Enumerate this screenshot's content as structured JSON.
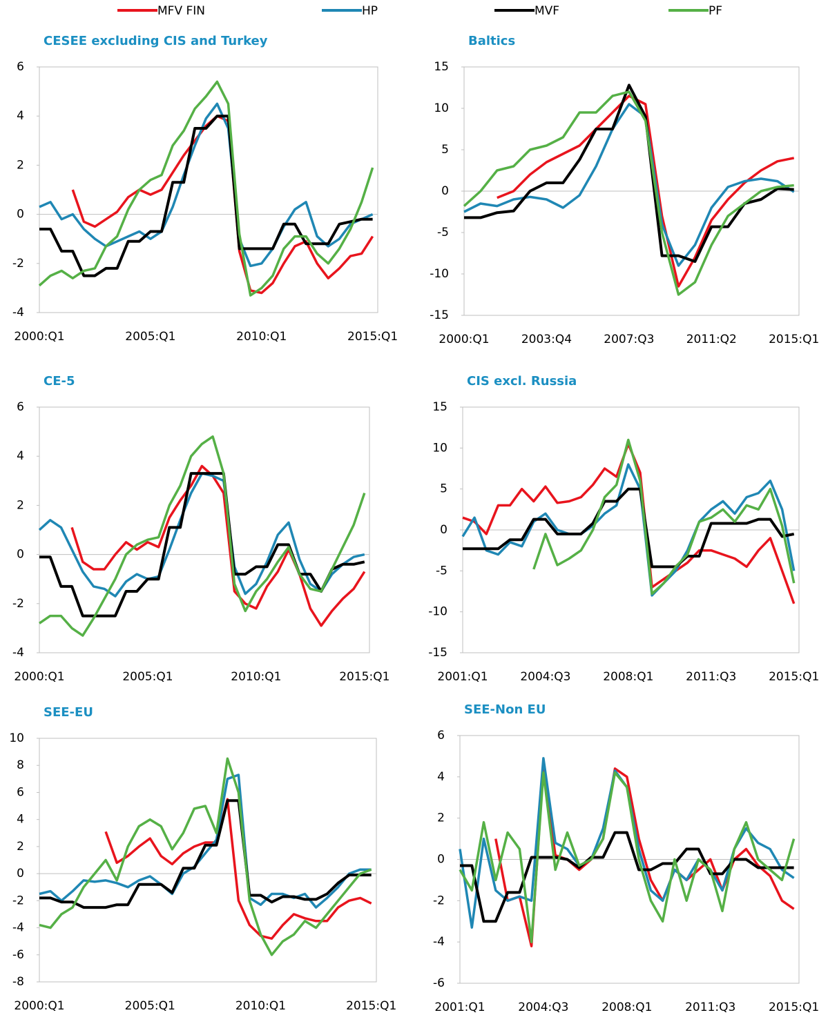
{
  "chart_data": [
    {
      "type": "line",
      "title": "CESEE excluding CIS and Turkey",
      "categories": [
        "2000:Q1",
        null,
        null,
        null,
        null,
        null,
        null,
        null,
        null,
        null,
        "2005:Q1",
        null,
        null,
        null,
        null,
        null,
        null,
        null,
        null,
        null,
        "2010:Q1",
        null,
        null,
        null,
        null,
        null,
        null,
        null,
        null,
        null,
        "2015:Q1"
      ],
      "ylim": [
        -4,
        6
      ],
      "yticks": [
        -4,
        -2,
        0,
        2,
        4,
        6
      ],
      "series": [
        {
          "name": "MFV FIN",
          "color": "#e8141d",
          "values": [
            null,
            null,
            null,
            1.0,
            -0.3,
            -0.5,
            -0.2,
            0.1,
            0.7,
            1.0,
            0.8,
            1.0,
            1.7,
            2.4,
            3.0,
            3.6,
            4.0,
            3.8,
            -1.5,
            -3.1,
            -3.2,
            -2.8,
            -2.0,
            -1.3,
            -1.1,
            -2.0,
            -2.6,
            -2.2,
            -1.7,
            -1.6,
            -0.9
          ]
        },
        {
          "name": "HP",
          "color": "#1f87b4",
          "values": [
            0.3,
            0.5,
            -0.2,
            0.0,
            -0.6,
            -1.0,
            -1.3,
            -1.1,
            -0.9,
            -0.7,
            -1.0,
            -0.7,
            0.3,
            1.6,
            2.8,
            3.9,
            4.5,
            3.5,
            -1.0,
            -2.1,
            -2.0,
            -1.4,
            -0.5,
            0.2,
            0.5,
            -0.9,
            -1.3,
            -1.0,
            -0.4,
            -0.2,
            0.0
          ]
        },
        {
          "name": "MVF",
          "color": "#000000",
          "values": [
            -0.6,
            -0.6,
            -1.5,
            -1.5,
            -2.5,
            -2.5,
            -2.2,
            -2.2,
            -1.1,
            -1.1,
            -0.7,
            -0.7,
            1.3,
            1.3,
            3.5,
            3.5,
            4.0,
            4.0,
            -1.4,
            -1.4,
            -1.4,
            -1.4,
            -0.4,
            -0.4,
            -1.2,
            -1.2,
            -1.2,
            -0.4,
            -0.3,
            -0.2,
            -0.2
          ]
        },
        {
          "name": "PF",
          "color": "#55b046",
          "values": [
            -2.9,
            -2.5,
            -2.3,
            -2.6,
            -2.3,
            -2.2,
            -1.3,
            -0.9,
            0.2,
            1.0,
            1.4,
            1.6,
            2.8,
            3.4,
            4.3,
            4.8,
            5.4,
            4.5,
            -0.8,
            -3.3,
            -3.0,
            -2.5,
            -1.4,
            -0.9,
            -0.9,
            -1.6,
            -2.0,
            -1.4,
            -0.6,
            0.5,
            1.9
          ]
        }
      ]
    },
    {
      "type": "line",
      "title": "Baltics",
      "categories": [
        "2000:Q1",
        null,
        null,
        null,
        null,
        "2003:Q4",
        null,
        null,
        null,
        null,
        "2007:Q3",
        null,
        null,
        null,
        null,
        "2011:Q2",
        null,
        null,
        null,
        null,
        "2015:Q1"
      ],
      "ylim": [
        -15,
        15
      ],
      "yticks": [
        -15,
        -10,
        -5,
        0,
        5,
        10,
        15
      ],
      "series": [
        {
          "name": "MFV FIN",
          "color": "#e8141d",
          "values": [
            null,
            null,
            -0.8,
            0.0,
            2.0,
            3.5,
            4.5,
            5.5,
            7.5,
            9.5,
            11.5,
            10.5,
            -3.0,
            -11.5,
            -8.0,
            -3.5,
            -1.0,
            1.0,
            2.5,
            3.6,
            4.0
          ]
        },
        {
          "name": "HP",
          "color": "#1f87b4",
          "values": [
            -2.5,
            -1.5,
            -1.8,
            -1.0,
            -0.7,
            -1.0,
            -2.0,
            -0.5,
            3.0,
            7.5,
            10.5,
            9.0,
            -4.0,
            -9.0,
            -6.5,
            -2.0,
            0.5,
            1.2,
            1.5,
            1.2,
            -0.1
          ]
        },
        {
          "name": "MVF",
          "color": "#000000",
          "values": [
            -3.2,
            -3.2,
            -2.6,
            -2.4,
            0.0,
            1.0,
            1.0,
            3.8,
            7.5,
            7.5,
            12.8,
            9.0,
            -7.8,
            -7.8,
            -8.5,
            -4.3,
            -4.3,
            -1.5,
            -1.0,
            0.3,
            0.2
          ]
        },
        {
          "name": "PF",
          "color": "#55b046",
          "values": [
            -1.8,
            0.0,
            2.5,
            3.0,
            5.0,
            5.5,
            6.5,
            9.5,
            9.5,
            11.5,
            12.0,
            8.5,
            -5.0,
            -12.5,
            -11.0,
            -6.5,
            -3.0,
            -1.5,
            0.0,
            0.5,
            0.7
          ]
        }
      ]
    },
    {
      "type": "line",
      "title": "CE-5",
      "categories": [
        "2000:Q1",
        null,
        null,
        null,
        null,
        null,
        null,
        null,
        null,
        null,
        "2005:Q1",
        null,
        null,
        null,
        null,
        null,
        null,
        null,
        null,
        null,
        "2010:Q1",
        null,
        null,
        null,
        null,
        null,
        null,
        null,
        null,
        null,
        "2015:Q1"
      ],
      "ylim": [
        -4,
        6
      ],
      "yticks": [
        -4,
        -2,
        0,
        2,
        4,
        6
      ],
      "series": [
        {
          "name": "MFV FIN",
          "color": "#e8141d",
          "values": [
            null,
            null,
            null,
            1.1,
            -0.3,
            -0.6,
            -0.6,
            0.0,
            0.5,
            0.2,
            0.5,
            0.3,
            1.5,
            2.2,
            2.8,
            3.6,
            3.2,
            2.5,
            -1.5,
            -2.0,
            -2.2,
            -1.3,
            -0.7,
            0.2,
            -0.8,
            -2.2,
            -2.9,
            -2.3,
            -1.8,
            -1.4,
            -0.7
          ]
        },
        {
          "name": "HP",
          "color": "#1f87b4",
          "values": [
            1.0,
            1.4,
            1.1,
            0.2,
            -0.7,
            -1.3,
            -1.4,
            -1.7,
            -1.1,
            -0.8,
            -1.0,
            -0.9,
            0.2,
            1.4,
            2.5,
            3.3,
            3.2,
            3.0,
            -0.5,
            -1.6,
            -1.2,
            -0.3,
            0.8,
            1.3,
            -0.2,
            -1.2,
            -1.5,
            -0.8,
            -0.4,
            -0.1,
            0.0
          ]
        },
        {
          "name": "MVF",
          "color": "#000000",
          "values": [
            -0.1,
            -0.1,
            -1.3,
            -1.3,
            -2.5,
            -2.5,
            -2.5,
            -2.5,
            -1.5,
            -1.5,
            -1.0,
            -1.0,
            1.1,
            1.1,
            3.3,
            3.3,
            3.3,
            3.3,
            -0.8,
            -0.8,
            -0.5,
            -0.5,
            0.4,
            0.4,
            -0.8,
            -0.8,
            -1.5,
            -0.6,
            -0.4,
            -0.4,
            -0.3
          ]
        },
        {
          "name": "PF",
          "color": "#55b046",
          "values": [
            -2.8,
            -2.5,
            -2.5,
            -3.0,
            -3.3,
            -2.6,
            -1.8,
            -1.0,
            0.0,
            0.4,
            0.6,
            0.7,
            2.0,
            2.8,
            4.0,
            4.5,
            4.8,
            3.3,
            -1.2,
            -2.3,
            -1.5,
            -1.0,
            -0.3,
            0.3,
            -0.8,
            -1.4,
            -1.5,
            -0.6,
            0.3,
            1.2,
            2.5
          ]
        }
      ]
    },
    {
      "type": "line",
      "title": "CIS excl. Russia",
      "categories": [
        "2001:Q1",
        null,
        null,
        null,
        null,
        null,
        null,
        "2004:Q3",
        null,
        null,
        null,
        null,
        null,
        null,
        "2008:Q1",
        null,
        null,
        null,
        null,
        null,
        null,
        "2011:Q3",
        null,
        null,
        null,
        null,
        null,
        null,
        "2015:Q1"
      ],
      "ylim": [
        -15,
        15
      ],
      "yticks": [
        -15,
        -10,
        -5,
        0,
        5,
        10,
        15
      ],
      "series": [
        {
          "name": "MFV FIN",
          "color": "#e8141d",
          "values": [
            1.5,
            1.0,
            -0.5,
            3.0,
            3.0,
            5.0,
            3.5,
            5.3,
            3.3,
            3.5,
            4.0,
            5.5,
            7.5,
            6.5,
            10.5,
            7.0,
            -7.0,
            -6.0,
            -5.0,
            -4.0,
            -2.5,
            -2.5,
            -3.0,
            -3.5,
            -4.5,
            -2.5,
            -1.0,
            -5.0,
            -9.0
          ]
        },
        {
          "name": "HP",
          "color": "#1f87b4",
          "values": [
            -0.8,
            1.5,
            -2.5,
            -3.0,
            -1.5,
            -2.0,
            1.0,
            2.0,
            0.0,
            -0.5,
            -0.5,
            0.5,
            2.0,
            3.0,
            8.0,
            5.0,
            -8.0,
            -6.5,
            -5.0,
            -2.5,
            1.0,
            2.5,
            3.5,
            2.0,
            4.0,
            4.5,
            6.0,
            2.5,
            -5.0
          ]
        },
        {
          "name": "MVF",
          "color": "#000000",
          "values": [
            -2.3,
            -2.3,
            -2.3,
            -2.3,
            -1.2,
            -1.2,
            1.3,
            1.3,
            -0.5,
            -0.5,
            -0.5,
            0.8,
            3.5,
            3.5,
            5.0,
            5.0,
            -4.5,
            -4.5,
            -4.5,
            -3.2,
            -3.2,
            0.8,
            0.8,
            0.8,
            0.8,
            1.3,
            1.3,
            -0.8,
            -0.5
          ]
        },
        {
          "name": "PF",
          "color": "#55b046",
          "values": [
            null,
            null,
            null,
            null,
            null,
            null,
            -4.8,
            -0.5,
            -4.3,
            -3.5,
            -2.5,
            0.0,
            4.0,
            5.5,
            11.0,
            6.0,
            -7.8,
            -6.5,
            -4.5,
            -3.0,
            1.0,
            1.5,
            2.5,
            1.0,
            3.0,
            2.5,
            5.0,
            0.5,
            -6.5
          ]
        }
      ]
    },
    {
      "type": "line",
      "title": "SEE-EU",
      "categories": [
        "2000:Q1",
        null,
        null,
        null,
        null,
        null,
        null,
        null,
        null,
        null,
        "2005:Q1",
        null,
        null,
        null,
        null,
        null,
        null,
        null,
        null,
        null,
        "2010:Q1",
        null,
        null,
        null,
        null,
        null,
        null,
        null,
        null,
        null,
        "2015:Q1"
      ],
      "ylim": [
        -8,
        10
      ],
      "yticks": [
        -8,
        -6,
        -4,
        -2,
        0,
        2,
        4,
        6,
        8,
        10
      ],
      "series": [
        {
          "name": "MFV FIN",
          "color": "#e8141d",
          "values": [
            null,
            null,
            null,
            null,
            null,
            null,
            3.1,
            0.8,
            1.3,
            2.0,
            2.6,
            1.3,
            0.7,
            1.5,
            2.0,
            2.3,
            2.3,
            5.5,
            -2.0,
            -3.8,
            -4.6,
            -4.8,
            -3.8,
            -3.0,
            -3.3,
            -3.5,
            -3.5,
            -2.5,
            -2.0,
            -1.8,
            -2.2
          ]
        },
        {
          "name": "HP",
          "color": "#1f87b4",
          "values": [
            -1.5,
            -1.3,
            -2.0,
            -1.3,
            -0.5,
            -0.6,
            -0.5,
            -0.7,
            -1.0,
            -0.5,
            -0.2,
            -0.8,
            -1.5,
            0.0,
            0.5,
            1.5,
            2.5,
            7.0,
            7.3,
            -1.8,
            -2.3,
            -1.5,
            -1.5,
            -1.8,
            -1.5,
            -2.5,
            -1.8,
            -1.0,
            0.0,
            0.3,
            0.3
          ]
        },
        {
          "name": "MVF",
          "color": "#000000",
          "values": [
            -1.8,
            -1.8,
            -2.1,
            -2.1,
            -2.5,
            -2.5,
            -2.5,
            -2.3,
            -2.3,
            -0.8,
            -0.8,
            -0.8,
            -1.4,
            0.4,
            0.4,
            2.1,
            2.1,
            5.4,
            5.4,
            -1.6,
            -1.6,
            -2.1,
            -1.7,
            -1.7,
            -1.9,
            -1.9,
            -1.5,
            -0.7,
            -0.1,
            -0.1,
            -0.1
          ]
        },
        {
          "name": "PF",
          "color": "#55b046",
          "values": [
            -3.8,
            -4.0,
            -3.0,
            -2.5,
            -1.0,
            0.0,
            1.0,
            -0.5,
            2.0,
            3.5,
            4.0,
            3.5,
            1.8,
            3.0,
            4.8,
            5.0,
            3.0,
            8.5,
            6.0,
            -2.0,
            -4.5,
            -6.0,
            -5.0,
            -4.5,
            -3.5,
            -4.0,
            -3.0,
            -2.0,
            -1.0,
            0.0,
            0.3
          ]
        }
      ]
    },
    {
      "type": "line",
      "title": "SEE-Non EU",
      "categories": [
        "2001:Q1",
        null,
        null,
        null,
        null,
        null,
        null,
        "2004:Q3",
        null,
        null,
        null,
        null,
        null,
        null,
        "2008:Q1",
        null,
        null,
        null,
        null,
        null,
        null,
        "2011:Q3",
        null,
        null,
        null,
        null,
        null,
        null,
        "2015:Q1"
      ],
      "ylim": [
        -6,
        6
      ],
      "yticks": [
        -6,
        -4,
        -2,
        0,
        2,
        4,
        6
      ],
      "series": [
        {
          "name": "MFV FIN",
          "color": "#e8141d",
          "values": [
            null,
            null,
            null,
            1.0,
            -2.0,
            -1.8,
            -4.2,
            4.5,
            0.2,
            0.0,
            -0.5,
            0.0,
            1.0,
            4.4,
            4.0,
            1.0,
            -1.0,
            -2.0,
            -0.5,
            -1.0,
            -0.5,
            0.0,
            -1.5,
            0.0,
            0.5,
            -0.3,
            -0.8,
            -2.0,
            -2.4
          ]
        },
        {
          "name": "HP",
          "color": "#1f87b4",
          "values": [
            0.5,
            -3.3,
            1.0,
            -1.5,
            -2.0,
            -1.8,
            -2.0,
            4.9,
            0.8,
            0.5,
            -0.3,
            0.0,
            1.5,
            4.3,
            3.5,
            0.5,
            -1.5,
            -2.0,
            -0.5,
            -1.0,
            0.0,
            -0.5,
            -1.5,
            0.5,
            1.5,
            0.8,
            0.5,
            -0.5,
            -0.9
          ]
        },
        {
          "name": "MVF",
          "color": "#000000",
          "values": [
            -0.3,
            -0.3,
            -3.0,
            -3.0,
            -1.6,
            -1.6,
            0.1,
            0.1,
            0.1,
            0.0,
            -0.4,
            0.1,
            0.1,
            1.3,
            1.3,
            -0.5,
            -0.5,
            -0.2,
            -0.2,
            0.5,
            0.5,
            -0.7,
            -0.7,
            0.0,
            0.0,
            -0.4,
            -0.4,
            -0.4,
            -0.4
          ]
        },
        {
          "name": "PF",
          "color": "#55b046",
          "values": [
            -0.5,
            -1.5,
            1.8,
            -1.0,
            1.3,
            0.5,
            -4.0,
            4.2,
            -0.5,
            1.3,
            -0.3,
            0.0,
            1.0,
            4.2,
            3.5,
            0.0,
            -2.0,
            -3.0,
            0.0,
            -2.0,
            0.0,
            -0.5,
            -2.5,
            0.5,
            1.8,
            0.0,
            -0.5,
            -1.0,
            1.0
          ]
        }
      ]
    }
  ]
}
